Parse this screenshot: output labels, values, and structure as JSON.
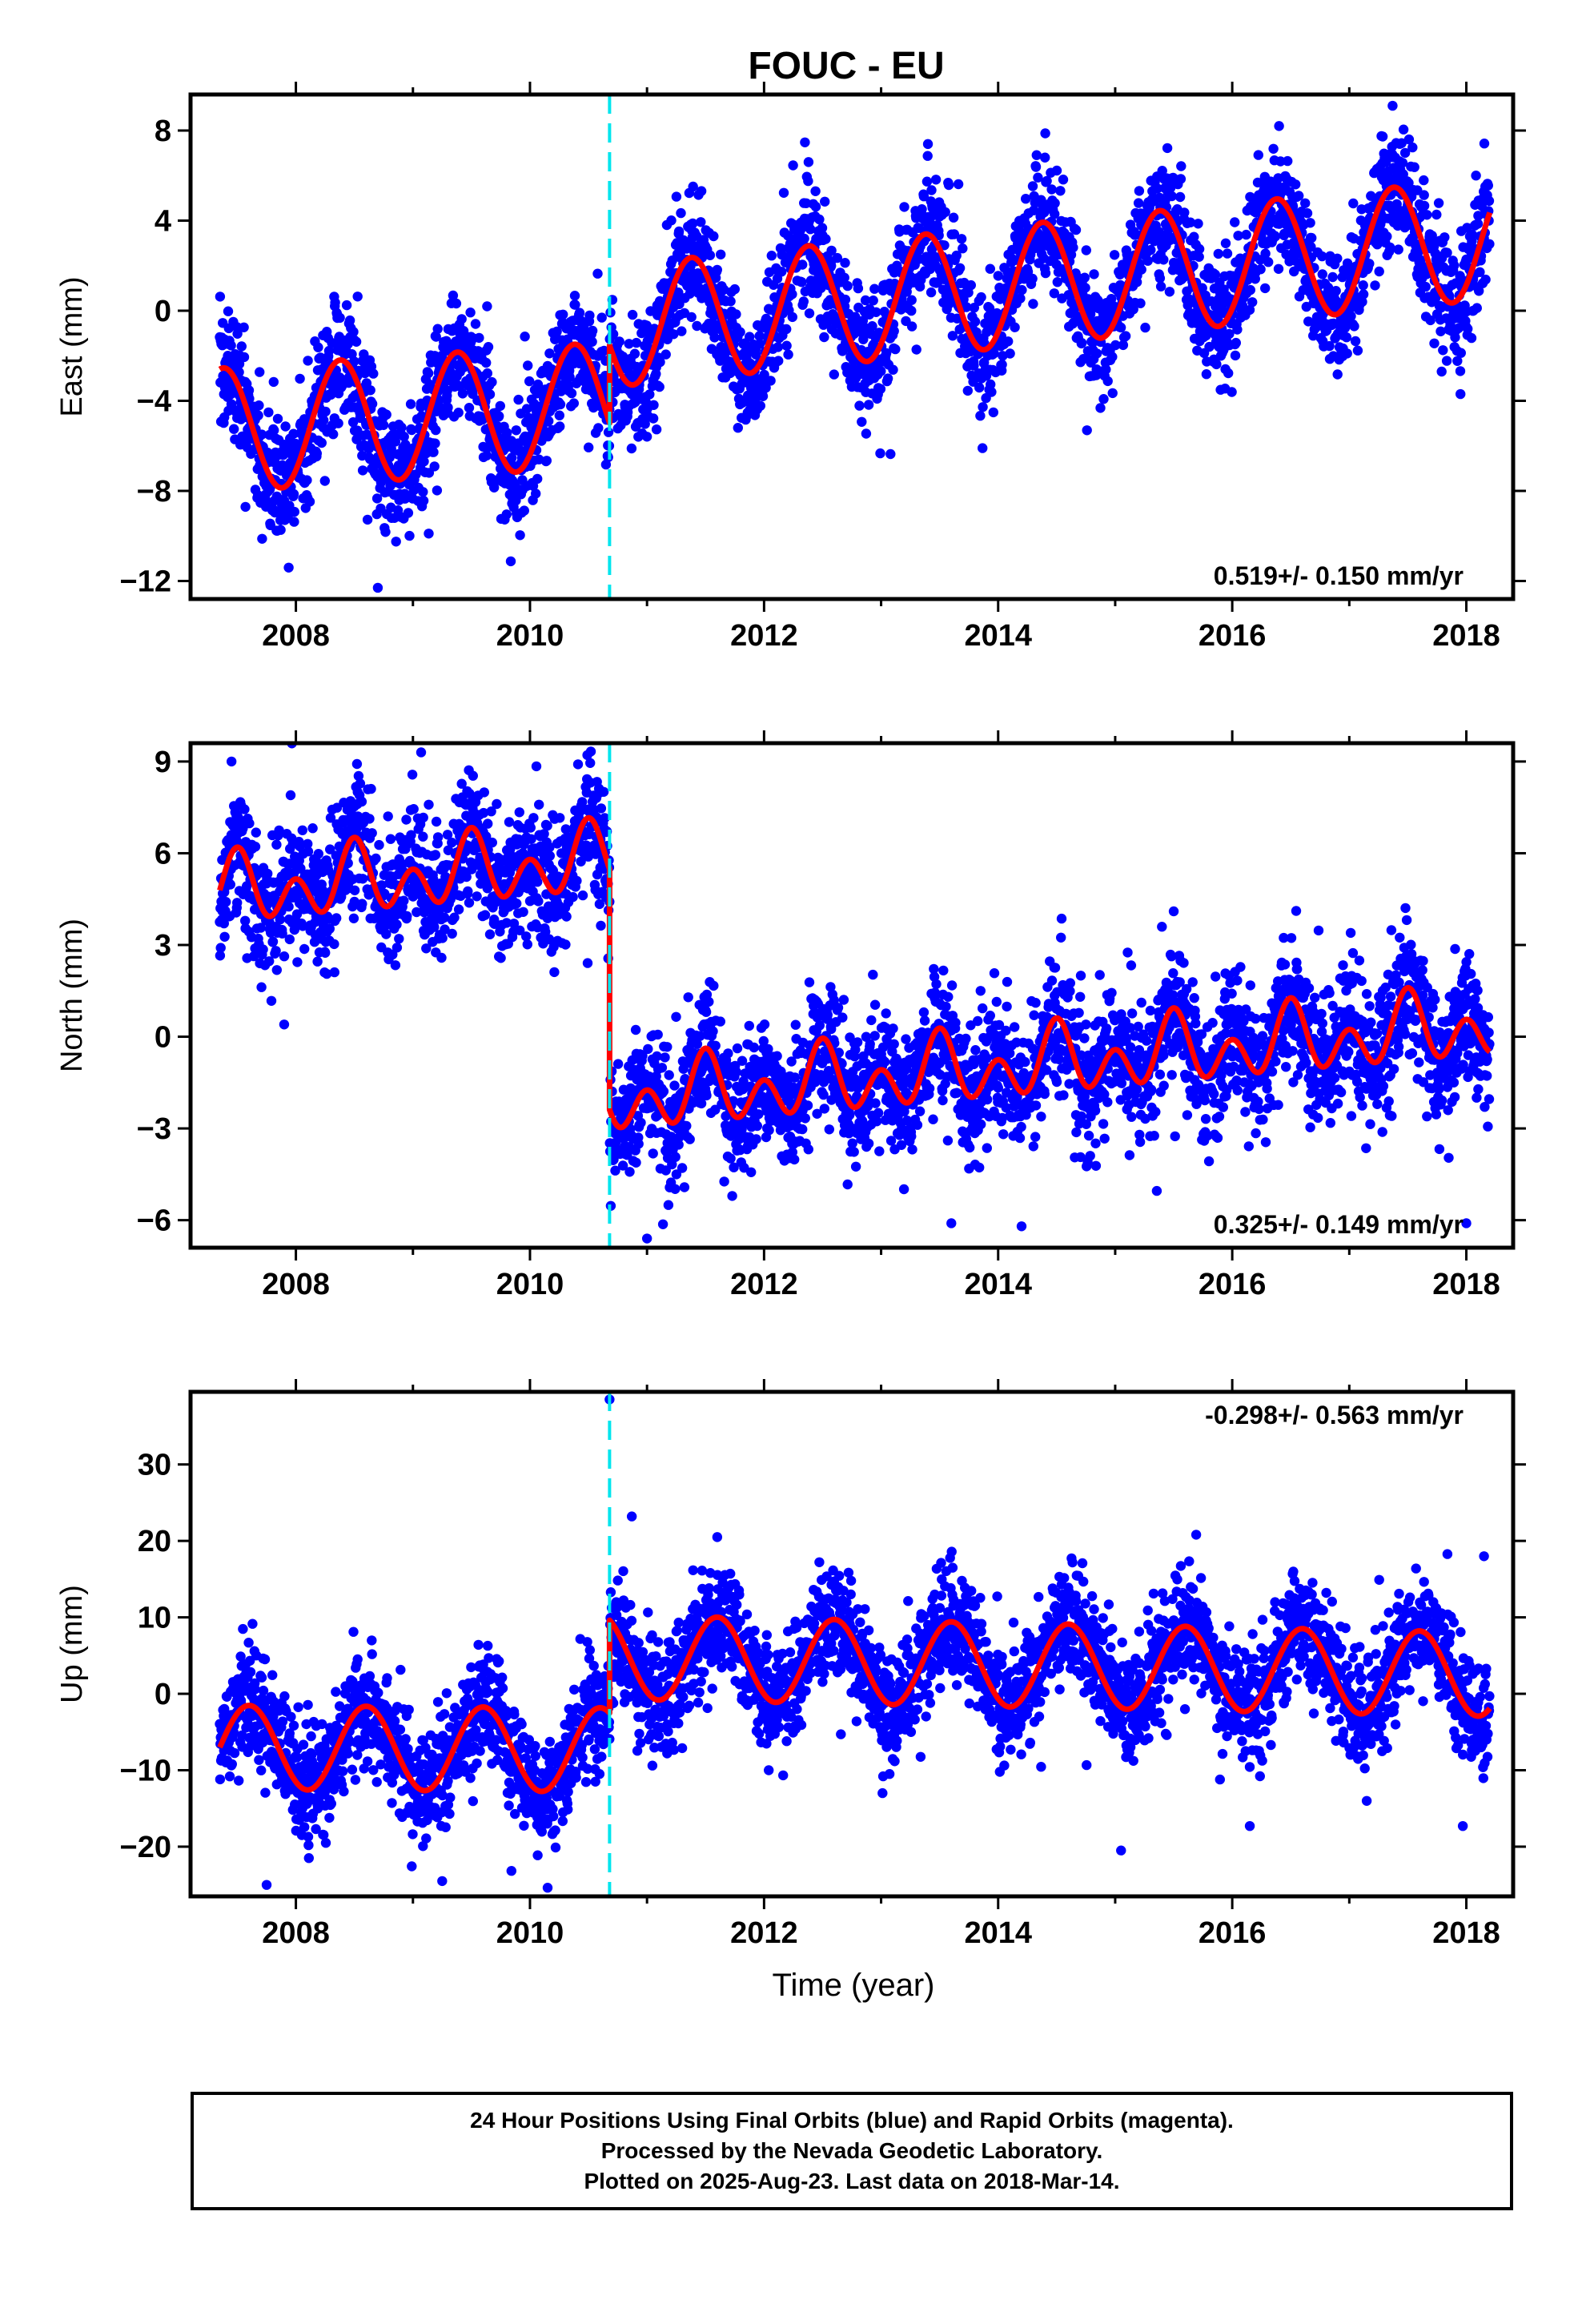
{
  "title": "FOUC - EU",
  "colors": {
    "points": "#0000ff",
    "fit": "#ff0000",
    "offset_line": "#00e5ee",
    "axes": "#000000"
  },
  "chart_data": [
    {
      "type": "scatter",
      "component": "east",
      "ylabel": "East (mm)",
      "xlabel": "",
      "xlim": [
        2007.1,
        2018.4
      ],
      "ylim": [
        -12.8,
        9.6
      ],
      "x_ticks": [
        2008,
        2010,
        2012,
        2014,
        2016,
        2018
      ],
      "y_ticks": [
        -12,
        -8,
        -4,
        0,
        4,
        8
      ],
      "rate_label": "0.519+/- 0.150 mm/yr",
      "rate_label_position": "bottom-right",
      "offset_epochs": [
        2010.68
      ],
      "data_range": [
        2007.35,
        2018.2
      ],
      "fit_segments": [
        {
          "x_start": 2007.35,
          "x_end": 2010.68,
          "intercept_at_start": -5.3,
          "trend_mm_per_yr": 0.35,
          "annual_amplitude": 2.75,
          "annual_peak_fraction": 0.38,
          "semiannual_amplitude": 0,
          "semiannual_peak_fraction": 0
        },
        {
          "x_start": 2010.68,
          "x_end": 2018.2,
          "intercept_at_start": -0.7,
          "trend_mm_per_yr": 0.52,
          "annual_amplitude": 2.7,
          "annual_peak_fraction": 0.38,
          "semiannual_amplitude": 0,
          "semiannual_peak_fraction": 0
        }
      ],
      "scatter_sigma": 1.3,
      "outliers": [
        [
          2008.7,
          -12.3
        ],
        [
          2017.37,
          9.1
        ],
        [
          2014.4,
          6.8
        ],
        [
          2013.4,
          7.4
        ],
        [
          2016.4,
          8.2
        ],
        [
          2012.38,
          6.6
        ],
        [
          2017.95,
          -3.7
        ]
      ]
    },
    {
      "type": "scatter",
      "component": "north",
      "ylabel": "North (mm)",
      "xlabel": "",
      "xlim": [
        2007.1,
        2018.4
      ],
      "ylim": [
        -6.9,
        9.6
      ],
      "x_ticks": [
        2008,
        2010,
        2012,
        2014,
        2016,
        2018
      ],
      "y_ticks": [
        -6,
        -3,
        0,
        3,
        6,
        9
      ],
      "rate_label": "0.325+/- 0.149 mm/yr",
      "rate_label_position": "bottom-right",
      "offset_epochs": [
        2010.68
      ],
      "data_range": [
        2007.35,
        2018.2
      ],
      "fit_segments": [
        {
          "x_start": 2007.35,
          "x_end": 2010.68,
          "intercept_at_start": 4.7,
          "trend_mm_per_yr": 0.32,
          "annual_amplitude": 0.6,
          "annual_peak_fraction": 0.5,
          "semiannual_amplitude": 0.85,
          "semiannual_peak_fraction": 0.5
        },
        {
          "x_start": 2010.68,
          "x_end": 2018.2,
          "intercept_at_start": -2.1,
          "trend_mm_per_yr": 0.33,
          "annual_amplitude": 0.6,
          "annual_peak_fraction": 0.5,
          "semiannual_amplitude": 0.85,
          "semiannual_peak_fraction": 0.5
        }
      ],
      "scatter_sigma": 1.05,
      "outliers": [
        [
          2007.45,
          9.0
        ],
        [
          2009.07,
          9.3
        ],
        [
          2007.9,
          0.4
        ],
        [
          2011.0,
          -6.6
        ],
        [
          2014.2,
          -6.2
        ],
        [
          2015.5,
          4.1
        ],
        [
          2018.0,
          -6.1
        ],
        [
          2013.6,
          -6.1
        ]
      ]
    },
    {
      "type": "scatter",
      "component": "up",
      "ylabel": "Up (mm)",
      "xlabel": "Time (year)",
      "xlim": [
        2007.1,
        2018.4
      ],
      "ylim": [
        -26.5,
        39.5
      ],
      "x_ticks": [
        2008,
        2010,
        2012,
        2014,
        2016,
        2018
      ],
      "y_ticks": [
        -20,
        -10,
        0,
        10,
        20,
        30
      ],
      "rate_label": "-0.298+/- 0.563 mm/yr",
      "rate_label_position": "top-right",
      "offset_epochs": [
        2010.68
      ],
      "data_range": [
        2007.35,
        2018.2
      ],
      "fit_segments": [
        {
          "x_start": 2007.35,
          "x_end": 2010.68,
          "intercept_at_start": -7.0,
          "trend_mm_per_yr": -0.1,
          "annual_amplitude": 5.5,
          "annual_peak_fraction": 0.6,
          "semiannual_amplitude": 0,
          "semiannual_peak_fraction": 0
        },
        {
          "x_start": 2010.68,
          "x_end": 2018.2,
          "intercept_at_start": 4.8,
          "trend_mm_per_yr": -0.3,
          "annual_amplitude": 5.5,
          "annual_peak_fraction": 0.6,
          "semiannual_amplitude": 0,
          "semiannual_peak_fraction": 0
        }
      ],
      "scatter_sigma": 3.6,
      "outliers": [
        [
          2010.68,
          38.5
        ],
        [
          2010.87,
          23.2
        ],
        [
          2015.05,
          -20.5
        ],
        [
          2016.15,
          -17.3
        ],
        [
          2017.97,
          -17.3
        ],
        [
          2007.75,
          -25.0
        ],
        [
          2009.25,
          -24.5
        ],
        [
          2011.6,
          20.5
        ]
      ]
    }
  ],
  "footer": {
    "line1": "24 Hour Positions Using Final Orbits (blue) and Rapid Orbits (magenta).",
    "line2": "Processed by the Nevada Geodetic Laboratory.",
    "line3": "Plotted on 2025-Aug-23. Last data on 2018-Mar-14."
  }
}
